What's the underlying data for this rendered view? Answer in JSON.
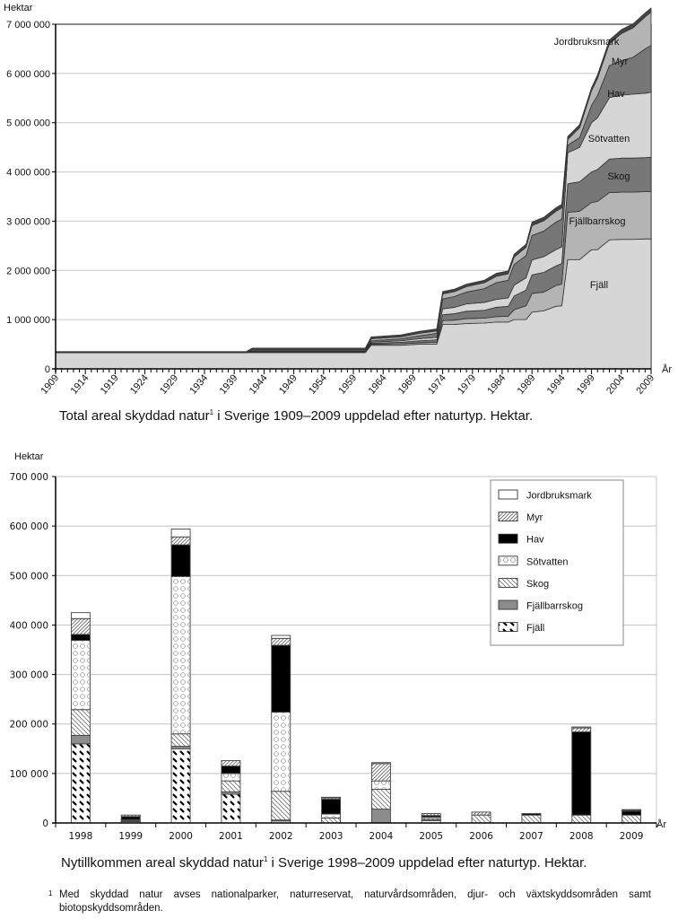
{
  "chart_data": [
    {
      "type": "area",
      "title": "Total areal skyddad natur i Sverige 1909–2009 uppdelad efter naturtyp. Hektar.",
      "caption_main": "Total areal skyddad natur",
      "caption_sup": "1",
      "caption_rest": " i Sverige 1909–2009 uppdelad efter naturtyp. Hektar.",
      "ylabel": "Hektar",
      "xlabel": "År",
      "ylim": [
        0,
        7000000
      ],
      "xlim": [
        1909,
        2009
      ],
      "grid": true,
      "yticks": [
        0,
        1000000,
        2000000,
        3000000,
        4000000,
        5000000,
        6000000,
        7000000
      ],
      "ytick_labels": [
        "0",
        "1 000 000",
        "2 000 000",
        "3 000 000",
        "4 000 000",
        "5 000 000",
        "6 000 000",
        "7 000 000"
      ],
      "xtick_labels": [
        "1909",
        "1914",
        "1919",
        "1924",
        "1929",
        "1934",
        "1939",
        "1944",
        "1949",
        "1954",
        "1959",
        "1964",
        "1969",
        "1974",
        "1979",
        "1984",
        "1989",
        "1994",
        "1999",
        "2004",
        "2009"
      ],
      "stacking": "cumulative",
      "x": [
        1909,
        1941,
        1942,
        1961,
        1962,
        1967,
        1970,
        1973,
        1974,
        1976,
        1978,
        1981,
        1983,
        1985,
        1986,
        1988,
        1989,
        1991,
        1993,
        1994,
        1995,
        1997,
        1999,
        2000,
        2002,
        2004,
        2006,
        2008,
        2009
      ],
      "series": [
        {
          "name": "Fjäll",
          "color": "#d6d6d6",
          "label_on_chart": true,
          "values": [
            330000,
            330000,
            330000,
            330000,
            480000,
            480000,
            500000,
            500000,
            900000,
            900000,
            920000,
            930000,
            950000,
            950000,
            1000000,
            1000000,
            1150000,
            1180000,
            1270000,
            1280000,
            2220000,
            2220000,
            2420000,
            2420000,
            2620000,
            2630000,
            2630000,
            2640000,
            2640000
          ]
        },
        {
          "name": "Fjällbarrskog",
          "color": "#b4b4b4",
          "label_on_chart": true,
          "values": [
            0,
            0,
            10000,
            10000,
            20000,
            30000,
            30000,
            40000,
            80000,
            90000,
            100000,
            100000,
            110000,
            120000,
            200000,
            280000,
            380000,
            380000,
            420000,
            440000,
            960000,
            980000,
            960000,
            980000,
            960000,
            960000,
            960000,
            960000,
            960000
          ]
        },
        {
          "name": "Skog",
          "color": "#777777",
          "label_on_chart": true,
          "values": [
            0,
            0,
            10000,
            10000,
            20000,
            30000,
            40000,
            50000,
            120000,
            130000,
            150000,
            160000,
            190000,
            200000,
            280000,
            320000,
            380000,
            400000,
            400000,
            420000,
            580000,
            600000,
            620000,
            650000,
            680000,
            690000,
            690000,
            690000,
            700000
          ]
        },
        {
          "name": "Sötvatten",
          "color": "#d6d6d6",
          "label_on_chart": true,
          "values": [
            0,
            0,
            10000,
            10000,
            20000,
            30000,
            40000,
            50000,
            120000,
            130000,
            150000,
            160000,
            160000,
            170000,
            220000,
            250000,
            300000,
            320000,
            330000,
            340000,
            630000,
            700000,
            1000000,
            1050000,
            1250000,
            1280000,
            1300000,
            1310000,
            1320000
          ]
        },
        {
          "name": "Hav",
          "color": "#777777",
          "label_on_chart": true,
          "values": [
            0,
            0,
            10000,
            10000,
            30000,
            40000,
            60000,
            80000,
            200000,
            220000,
            240000,
            280000,
            340000,
            360000,
            420000,
            450000,
            500000,
            520000,
            560000,
            560000,
            150000,
            200000,
            350000,
            450000,
            650000,
            700000,
            750000,
            900000,
            950000
          ]
        },
        {
          "name": "Myr",
          "color": "#b4b4b4",
          "label_on_chart": true,
          "values": [
            0,
            0,
            20000,
            20000,
            40000,
            40000,
            50000,
            50000,
            100000,
            100000,
            110000,
            120000,
            130000,
            130000,
            150000,
            170000,
            200000,
            210000,
            220000,
            230000,
            120000,
            200000,
            300000,
            350000,
            450000,
            550000,
            600000,
            650000,
            680000
          ]
        },
        {
          "name": "Jordbruksmark",
          "color": "#444444",
          "label_on_chart": true,
          "values": [
            20000,
            20000,
            30000,
            30000,
            40000,
            40000,
            40000,
            40000,
            50000,
            50000,
            50000,
            50000,
            60000,
            60000,
            60000,
            60000,
            70000,
            70000,
            70000,
            70000,
            60000,
            60000,
            60000,
            70000,
            70000,
            80000,
            80000,
            80000,
            80000
          ]
        }
      ]
    },
    {
      "type": "bar",
      "stacked": true,
      "title": "Nytillkommen areal skyddad natur i Sverige 1998–2009 uppdelad efter naturtyp. Hektar.",
      "caption_main": "Nytillkommen areal skyddad natur",
      "caption_sup": "1",
      "caption_rest": " i Sverige 1998–2009 uppdelad efter naturtyp. Hektar.",
      "ylabel": "Hektar",
      "xlabel": "År",
      "ylim": [
        0,
        700000
      ],
      "grid": true,
      "legend_position": "top-right",
      "yticks": [
        0,
        100000,
        200000,
        300000,
        400000,
        500000,
        600000,
        700000
      ],
      "ytick_labels": [
        "0",
        "100 000",
        "200 000",
        "300 000",
        "400 000",
        "500 000",
        "600 000",
        "700 000"
      ],
      "categories": [
        "1998",
        "1999",
        "2000",
        "2001",
        "2002",
        "2003",
        "2004",
        "2005",
        "2006",
        "2007",
        "2008",
        "2009"
      ],
      "series": [
        {
          "name": "Fjäll",
          "pattern": "fjall",
          "values": [
            160000,
            3000,
            150000,
            58000,
            4000,
            0,
            0,
            5000,
            0,
            0,
            0,
            0
          ]
        },
        {
          "name": "Fjällbarrskog",
          "pattern": "fjallbarr",
          "values": [
            17000,
            1000,
            5000,
            5000,
            2000,
            0,
            28000,
            1000,
            0,
            0,
            0,
            0
          ]
        },
        {
          "name": "Skog",
          "pattern": "skog",
          "values": [
            52000,
            2000,
            25000,
            22000,
            58000,
            10000,
            40000,
            3000,
            16000,
            16000,
            16000,
            16000
          ]
        },
        {
          "name": "Sötvatten",
          "pattern": "sotvatten",
          "values": [
            140000,
            1000,
            318000,
            15000,
            160000,
            8000,
            17000,
            3000,
            0,
            0,
            0,
            0
          ]
        },
        {
          "name": "Hav",
          "pattern": "hav",
          "values": [
            12000,
            6000,
            64000,
            15000,
            135000,
            30000,
            0,
            3000,
            0,
            3000,
            168000,
            8000
          ]
        },
        {
          "name": "Myr",
          "pattern": "myr",
          "values": [
            32000,
            3000,
            16000,
            11000,
            14000,
            3000,
            35000,
            4000,
            6000,
            0,
            8000,
            2000
          ]
        },
        {
          "name": "Jordbruksmark",
          "pattern": "jord",
          "values": [
            12000,
            0,
            16000,
            0,
            6000,
            1000,
            2000,
            0,
            0,
            0,
            2000,
            1000
          ]
        }
      ],
      "legend_order": [
        "Jordbruksmark",
        "Myr",
        "Hav",
        "Sötvatten",
        "Skog",
        "Fjällbarrskog",
        "Fjäll"
      ]
    }
  ],
  "footnote": {
    "marker": "1",
    "text": "Med skyddad natur avses nationalparker, naturreservat, naturvårdsområden, djur- och växtskyddsområden samt biotopskyddsområden."
  }
}
